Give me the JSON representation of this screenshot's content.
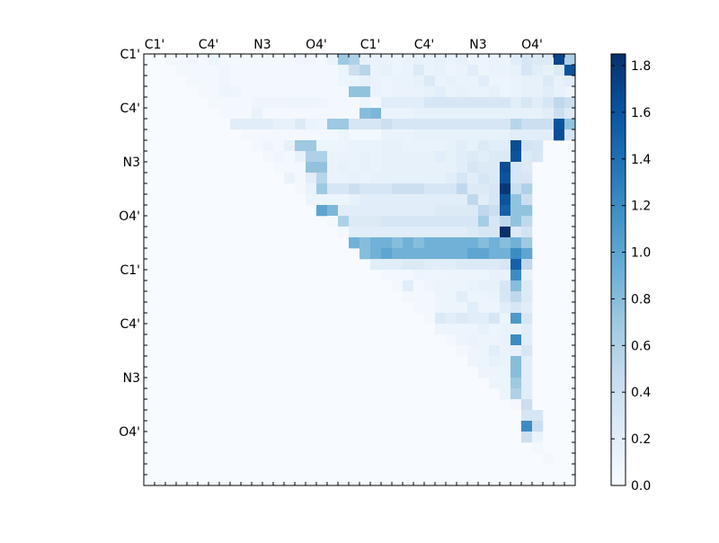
{
  "chart_data": {
    "type": "heatmap",
    "title": "",
    "matrix_size": 40,
    "x_ticks": [
      {
        "index": 1,
        "label": "C1'"
      },
      {
        "index": 6,
        "label": "C4'"
      },
      {
        "index": 11,
        "label": "N3"
      },
      {
        "index": 16,
        "label": "O4'"
      },
      {
        "index": 21,
        "label": "C1'"
      },
      {
        "index": 26,
        "label": "C4'"
      },
      {
        "index": 31,
        "label": "N3"
      },
      {
        "index": 36,
        "label": "O4'"
      }
    ],
    "y_ticks": [
      {
        "index": 0,
        "label": "C1'"
      },
      {
        "index": 5,
        "label": "C4'"
      },
      {
        "index": 10,
        "label": "N3"
      },
      {
        "index": 15,
        "label": "O4'"
      },
      {
        "index": 20,
        "label": "C1'"
      },
      {
        "index": 25,
        "label": "C4'"
      },
      {
        "index": 30,
        "label": "N3"
      },
      {
        "index": 35,
        "label": "O4'"
      }
    ],
    "colorbar": {
      "vmin": 0.0,
      "vmax": 1.85,
      "colormap": "Blues",
      "tick_labels": [
        "0.0",
        "0.2",
        "0.4",
        "0.6",
        "0.8",
        "1.0",
        "1.2",
        "1.4",
        "1.6",
        "1.8"
      ],
      "tick_values": [
        0.0,
        0.2,
        0.4,
        0.6,
        0.8,
        1.0,
        1.2,
        1.4,
        1.6,
        1.8
      ]
    },
    "row_values": [
      [
        0.05,
        0.05,
        0.08,
        0.05,
        0.1,
        0.05,
        0.05,
        0.05,
        0.05,
        0.05,
        0.05,
        0.05,
        0.08,
        0.08,
        0.05,
        0.12,
        0.7,
        0.6,
        0.15,
        0.12,
        0.12,
        0.1,
        0.12,
        0.15,
        0.12,
        0.15,
        0.12,
        0.15,
        0.1,
        0.1,
        0.12,
        0.1,
        0.2,
        0.3,
        0.25,
        0.25,
        1.7,
        0.6,
        0.3
      ],
      [
        0.05,
        0.05,
        0.05,
        0.05,
        0.08,
        0.05,
        0.05,
        0.05,
        0.05,
        0.05,
        0.05,
        0.05,
        0.05,
        0.05,
        0.05,
        0.1,
        0.4,
        0.55,
        0.12,
        0.15,
        0.1,
        0.12,
        0.25,
        0.12,
        0.15,
        0.1,
        0.12,
        0.2,
        0.1,
        0.12,
        0.12,
        0.15,
        0.3,
        0.2,
        0.15,
        0.25,
        1.6,
        0.4,
        0.25
      ],
      [
        0.05,
        0.05,
        0.05,
        0.08,
        0.05,
        0.05,
        0.05,
        0.05,
        0.05,
        0.05,
        0.05,
        0.05,
        0.05,
        0.05,
        0.1,
        0.1,
        0.15,
        0.12,
        0.1,
        0.12,
        0.12,
        0.15,
        0.25,
        0.12,
        0.15,
        0.12,
        0.12,
        0.2,
        0.1,
        0.1,
        0.12,
        0.15,
        0.15,
        0.25,
        0.15,
        0.2,
        1.5,
        0.6,
        0.2
      ],
      [
        0.05,
        0.05,
        0.1,
        0.08,
        0.05,
        0.05,
        0.05,
        0.05,
        0.05,
        0.05,
        0.05,
        0.05,
        0.05,
        0.05,
        0.75,
        0.75,
        0.12,
        0.1,
        0.12,
        0.12,
        0.12,
        0.15,
        0.2,
        0.12,
        0.15,
        0.12,
        0.12,
        0.15,
        0.1,
        0.12,
        0.15,
        0.15,
        0.2,
        0.15,
        0.1,
        0.25,
        1.7,
        0.45,
        0.2
      ],
      [
        0.05,
        0.05,
        0.05,
        0.05,
        0.08,
        0.08,
        0.08,
        0.08,
        0.1,
        0.08,
        0.08,
        0.05,
        0.05,
        0.05,
        0.1,
        0.05,
        0.2,
        0.2,
        0.2,
        0.2,
        0.3,
        0.3,
        0.3,
        0.3,
        0.3,
        0.3,
        0.3,
        0.3,
        0.2,
        0.3,
        0.2,
        0.3,
        0.5,
        0.4,
        0.4,
        0.4,
        1.5,
        0.8,
        0.8
      ],
      [
        0.05,
        0.05,
        0.05,
        0.12,
        0.05,
        0.05,
        0.05,
        0.05,
        0.05,
        0.05,
        0.05,
        0.05,
        0.05,
        0.8,
        0.85,
        0.12,
        0.12,
        0.12,
        0.15,
        0.15,
        0.15,
        0.15,
        0.15,
        0.15,
        0.15,
        0.15,
        0.15,
        0.15,
        0.15,
        0.15,
        0.2,
        0.4,
        0.25,
        0.25,
        0.25,
        1.65,
        0.7,
        0.4
      ],
      [
        0.2,
        0.2,
        0.2,
        0.2,
        0.15,
        0.15,
        0.25,
        0.12,
        0.1,
        0.7,
        0.7,
        0.3,
        0.3,
        0.3,
        0.4,
        0.3,
        0.3,
        0.3,
        0.3,
        0.3,
        0.3,
        0.3,
        0.3,
        0.3,
        0.3,
        0.3,
        0.55,
        0.4,
        0.4,
        0.4,
        1.6,
        0.75,
        0.75
      ],
      [
        0.05,
        0.05,
        0.05,
        0.05,
        0.05,
        0.05,
        0.05,
        0.05,
        0.05,
        0.1,
        0.05,
        0.05,
        0.05,
        0.12,
        0.12,
        0.12,
        0.15,
        0.15,
        0.15,
        0.15,
        0.15,
        0.15,
        0.15,
        0.15,
        0.15,
        0.2,
        0.2,
        0.2,
        0.2,
        1.65,
        0.3,
        0.3
      ],
      [
        0.05,
        0.08,
        0.05,
        0.15,
        0.7,
        0.7,
        0.1,
        0.1,
        0.1,
        0.12,
        0.12,
        0.12,
        0.15,
        0.15,
        0.12,
        0.12,
        0.12,
        0.12,
        0.15,
        0.2,
        0.15,
        0.25,
        0.2,
        0.2,
        1.65,
        0.35,
        0.3
      ],
      [
        0.05,
        0.08,
        0.05,
        0.15,
        0.6,
        0.6,
        0.12,
        0.12,
        0.12,
        0.15,
        0.12,
        0.15,
        0.15,
        0.15,
        0.15,
        0.15,
        0.2,
        0.15,
        0.2,
        0.25,
        0.2,
        0.25,
        0.25,
        1.6,
        0.25,
        0.3
      ],
      [
        0.05,
        0.05,
        0.05,
        0.75,
        0.75,
        0.12,
        0.15,
        0.12,
        0.15,
        0.12,
        0.15,
        0.15,
        0.15,
        0.15,
        0.15,
        0.15,
        0.15,
        0.2,
        0.3,
        0.25,
        0.25,
        1.65,
        0.3,
        0.25
      ],
      [
        0.12,
        0.05,
        0.2,
        0.55,
        0.12,
        0.12,
        0.15,
        0.12,
        0.15,
        0.15,
        0.15,
        0.15,
        0.15,
        0.15,
        0.15,
        0.2,
        0.3,
        0.2,
        0.3,
        0.25,
        1.6,
        0.3,
        0.3
      ],
      [
        0.05,
        0.12,
        0.7,
        0.3,
        0.3,
        0.4,
        0.3,
        0.3,
        0.3,
        0.4,
        0.4,
        0.4,
        0.3,
        0.3,
        0.3,
        0.5,
        0.25,
        0.25,
        0.3,
        1.8,
        0.4,
        0.6
      ],
      [
        0.1,
        0.1,
        0.1,
        0.1,
        0.15,
        0.2,
        0.2,
        0.2,
        0.2,
        0.2,
        0.2,
        0.2,
        0.2,
        0.2,
        0.2,
        0.5,
        0.2,
        0.3,
        1.6,
        0.75,
        0.4
      ],
      [
        1.0,
        0.85,
        0.2,
        0.2,
        0.2,
        0.2,
        0.2,
        0.2,
        0.2,
        0.2,
        0.2,
        0.25,
        0.25,
        0.25,
        0.25,
        0.5,
        0.4,
        1.5,
        0.75,
        0.75
      ],
      [
        0.05,
        0.6,
        0.25,
        0.25,
        0.25,
        0.3,
        0.3,
        0.3,
        0.3,
        0.3,
        0.3,
        0.3,
        0.3,
        0.3,
        0.65,
        0.3,
        0.5,
        0.75,
        0.5
      ],
      [
        0.05,
        0.2,
        0.2,
        0.2,
        0.2,
        0.2,
        0.2,
        0.2,
        0.2,
        0.2,
        0.2,
        0.2,
        0.25,
        0.3,
        0.3,
        1.85,
        0.25,
        0.35
      ],
      [
        0.9,
        0.8,
        0.9,
        0.9,
        0.8,
        0.9,
        0.8,
        0.9,
        0.9,
        0.9,
        0.9,
        0.9,
        0.8,
        0.9,
        0.8,
        0.9,
        0.7
      ],
      [
        0.8,
        0.9,
        1.0,
        0.9,
        0.9,
        0.9,
        0.9,
        0.9,
        0.9,
        0.9,
        1.0,
        1.0,
        0.9,
        0.9,
        1.2,
        1.0
      ],
      [
        0.2,
        0.2,
        0.2,
        0.25,
        0.25,
        0.2,
        0.2,
        0.2,
        0.25,
        0.25,
        0.25,
        0.25,
        0.3,
        1.5,
        0.5
      ],
      [
        0.05,
        0.05,
        0.05,
        0.1,
        0.08,
        0.08,
        0.1,
        0.1,
        0.1,
        0.1,
        0.15,
        0.15,
        1.2,
        0.15
      ],
      [
        0.05,
        0.2,
        0.05,
        0.08,
        0.1,
        0.1,
        0.1,
        0.12,
        0.15,
        0.15,
        0.3,
        0.8,
        0.25
      ],
      [
        0.05,
        0.05,
        0.05,
        0.1,
        0.1,
        0.2,
        0.1,
        0.1,
        0.12,
        0.3,
        0.5,
        0.25
      ],
      [
        0.05,
        0.05,
        0.1,
        0.1,
        0.1,
        0.2,
        0.1,
        0.1,
        0.2,
        0.3,
        0.2
      ],
      [
        0.05,
        0.25,
        0.2,
        0.25,
        0.2,
        0.2,
        0.3,
        0.1,
        1.1,
        0.3
      ],
      [
        0.1,
        0.1,
        0.1,
        0.1,
        0.15,
        0.1,
        0.12,
        0.12,
        0.2
      ],
      [
        0.05,
        0.1,
        0.12,
        0.1,
        0.1,
        0.12,
        1.2,
        0.2
      ],
      [
        0.05,
        0.08,
        0.1,
        0.2,
        0.12,
        0.15,
        0.3
      ],
      [
        0.08,
        0.1,
        0.15,
        0.12,
        0.8,
        0.2
      ],
      [
        0.1,
        0.1,
        0.1,
        0.8,
        0.2
      ],
      [
        0.1,
        0.1,
        0.7,
        0.2
      ],
      [
        0.1,
        0.6,
        0.2
      ],
      [
        0.05,
        0.4
      ],
      [
        0.3,
        0.3
      ],
      [
        1.2,
        0.4
      ],
      [
        0.4,
        0.12
      ],
      [
        0.05
      ],
      [
        0.05
      ]
    ],
    "row_start_col": [
      2,
      3,
      4,
      5,
      6,
      7,
      8,
      9,
      10,
      11,
      12,
      13,
      14,
      15,
      16,
      17,
      18,
      19,
      20,
      21,
      22,
      23,
      24,
      25,
      26,
      27,
      28,
      29,
      30,
      31,
      32,
      33,
      34,
      35,
      35,
      35,
      36,
      37
    ]
  }
}
